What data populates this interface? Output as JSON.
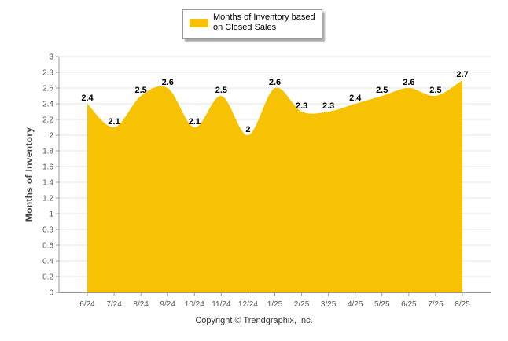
{
  "colors": {
    "area": "#F7C204",
    "grid": "#e4e4e4",
    "axis": "#999999",
    "tick_text": "#555555",
    "label_text": "#000000"
  },
  "legend": {
    "label": "Months of Inventory based on Closed Sales"
  },
  "footer": {
    "copyright": "Copyright © Trendgraphix, Inc."
  },
  "chart_data": {
    "type": "area",
    "title": "",
    "xlabel": "",
    "ylabel": "Months of Inventory",
    "categories": [
      "6/24",
      "7/24",
      "8/24",
      "9/24",
      "10/24",
      "11/24",
      "12/24",
      "1/25",
      "2/25",
      "3/25",
      "4/25",
      "5/25",
      "6/25",
      "7/25",
      "8/25"
    ],
    "series": [
      {
        "name": "Months of Inventory based on Closed Sales",
        "values": [
          2.4,
          2.1,
          2.5,
          2.6,
          2.1,
          2.5,
          2.0,
          2.6,
          2.3,
          2.3,
          2.4,
          2.5,
          2.6,
          2.5,
          2.7
        ],
        "data_labels": [
          "2.4",
          "2.1",
          "2.5",
          "2.6",
          "2.1",
          "2.5",
          "2",
          "2.6",
          "2.3",
          "2.3",
          "2.4",
          "2.5",
          "2.6",
          "2.5",
          "2.7"
        ]
      }
    ],
    "ylim": [
      0,
      3
    ],
    "yticks": [
      0,
      0.2,
      0.4,
      0.6,
      0.8,
      1,
      1.2,
      1.4,
      1.6,
      1.8,
      2,
      2.2,
      2.4,
      2.6,
      2.8,
      3
    ],
    "ytick_labels": [
      "0",
      "0.2",
      "0.4",
      "0.6",
      "0.8",
      "1",
      "1.2",
      "1.4",
      "1.6",
      "1.8",
      "2",
      "2.2",
      "2.4",
      "2.6",
      "2.8",
      "3"
    ],
    "grid": true,
    "legend_position": "top-center"
  }
}
